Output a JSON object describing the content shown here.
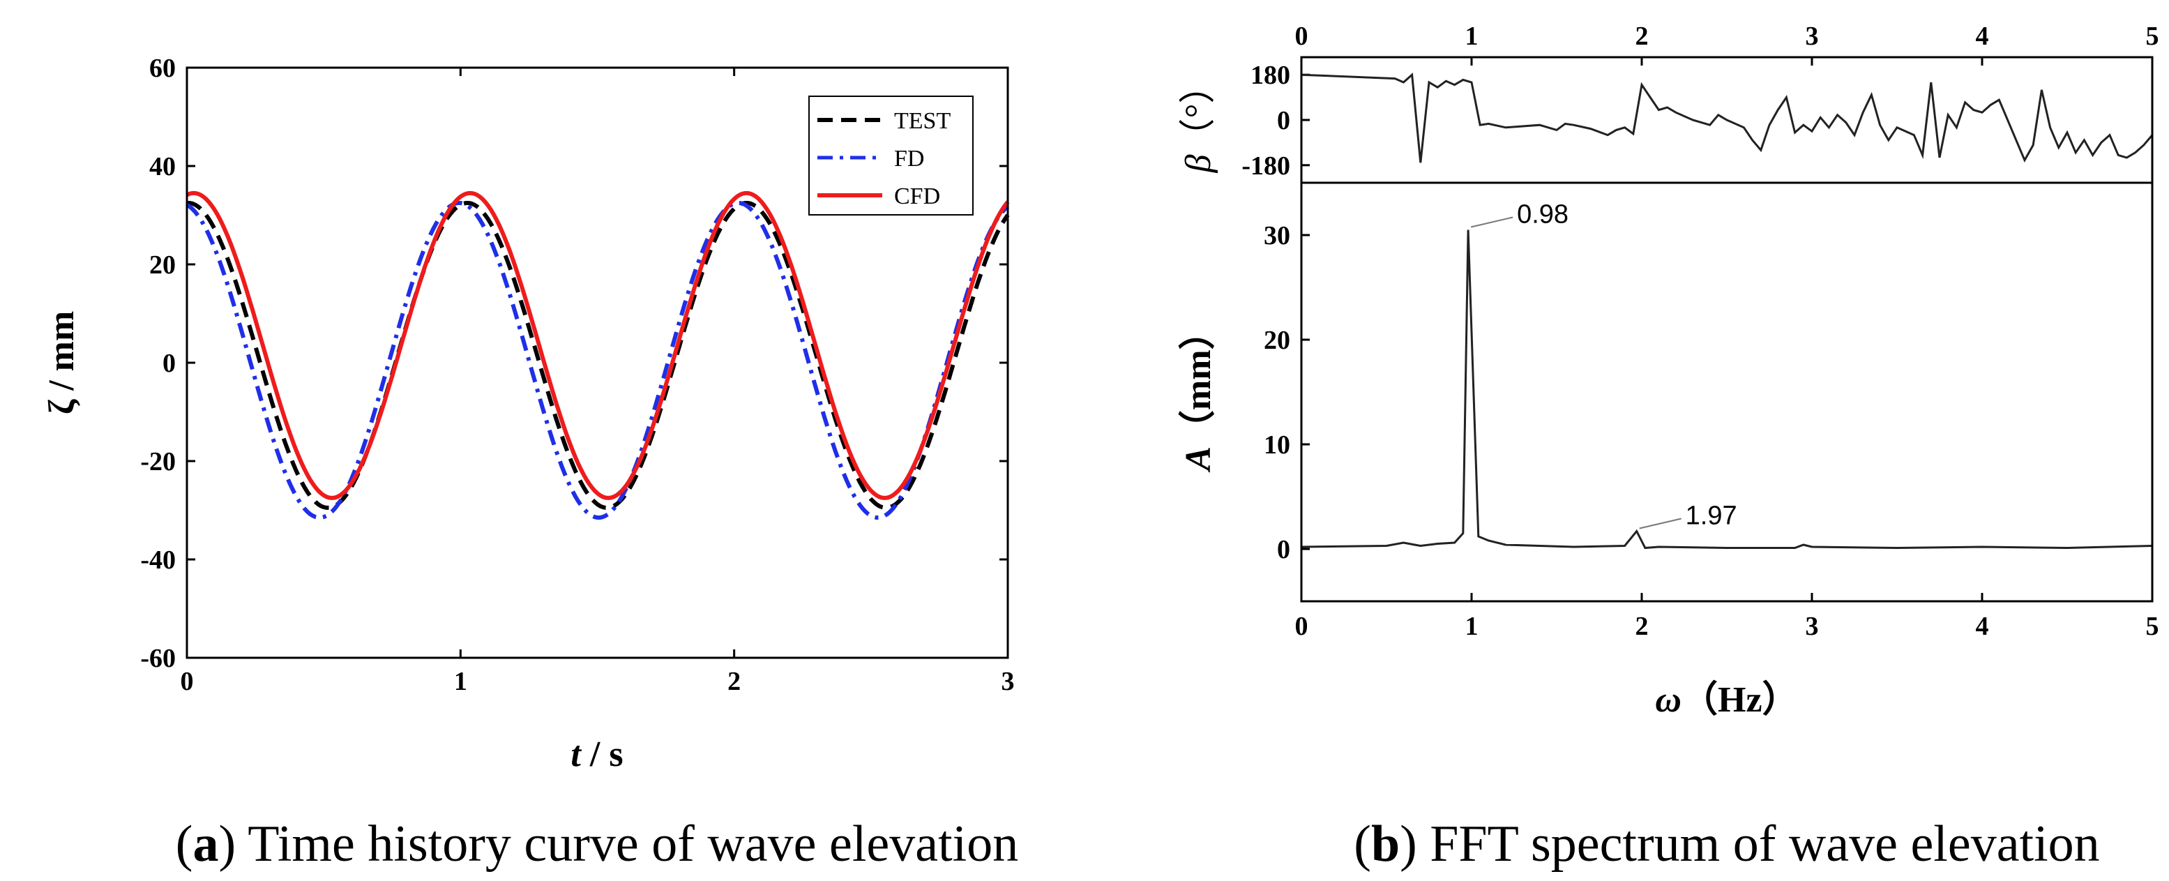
{
  "chart_data": [
    {
      "type": "line",
      "title": "",
      "xlabel_italic": "t",
      "xlabel_rest": " / s",
      "ylabel": "ζ / mm",
      "xlim": [
        0,
        3
      ],
      "ylim": [
        -60,
        60
      ],
      "x_ticks": [
        "0",
        "1",
        "2",
        "3"
      ],
      "y_ticks": [
        "-60",
        "-40",
        "-20",
        "0",
        "20",
        "40",
        "60"
      ],
      "caption_label": "a",
      "caption_text": " Time history curve of wave elevation",
      "legend_position": "top-right",
      "series": [
        {
          "name": "TEST",
          "color": "#000000",
          "style": "dashed",
          "amplitude": 31,
          "offset": 1.5,
          "period": 1.02,
          "t0": 0.005
        },
        {
          "name": "FD",
          "color": "#1f2fe8",
          "style": "dashdot",
          "amplitude": 32,
          "offset": 0.5,
          "period": 1.02,
          "t0": -0.025
        },
        {
          "name": "CFD",
          "color": "#ee1c1c",
          "style": "solid",
          "amplitude": 31,
          "offset": 3.5,
          "period": 1.01,
          "t0": 0.025
        }
      ]
    },
    {
      "type": "line",
      "title": "",
      "xlabel_italic": "ω",
      "xlabel_rest": "（Hz）",
      "xlim": [
        0,
        5
      ],
      "x_ticks": [
        "0",
        "1",
        "2",
        "3",
        "4",
        "5"
      ],
      "caption_label": "b",
      "caption_text": " FFT spectrum of wave elevation",
      "phase": {
        "ylabel_italic": "β",
        "ylabel_rest": "（°）",
        "ylim": [
          -250,
          250
        ],
        "y_ticks": [
          "180",
          "0",
          "-180"
        ],
        "y_tick_values": [
          180,
          0,
          -180
        ],
        "x": [
          0,
          0.55,
          0.6,
          0.65,
          0.7,
          0.75,
          0.8,
          0.85,
          0.9,
          0.95,
          1.0,
          1.05,
          1.1,
          1.2,
          1.3,
          1.4,
          1.5,
          1.55,
          1.6,
          1.7,
          1.8,
          1.85,
          1.9,
          1.95,
          2.0,
          2.05,
          2.1,
          2.15,
          2.2,
          2.3,
          2.4,
          2.45,
          2.5,
          2.6,
          2.65,
          2.7,
          2.75,
          2.8,
          2.85,
          2.9,
          2.95,
          3.0,
          3.05,
          3.1,
          3.15,
          3.2,
          3.25,
          3.3,
          3.35,
          3.4,
          3.45,
          3.5,
          3.6,
          3.65,
          3.7,
          3.75,
          3.8,
          3.85,
          3.9,
          3.95,
          4.0,
          4.05,
          4.1,
          4.2,
          4.25,
          4.3,
          4.35,
          4.4,
          4.45,
          4.5,
          4.55,
          4.6,
          4.65,
          4.7,
          4.75,
          4.8,
          4.85,
          4.9,
          4.95,
          5.0
        ],
        "values": [
          180,
          165,
          150,
          180,
          -170,
          150,
          130,
          155,
          140,
          160,
          150,
          -20,
          -15,
          -30,
          -25,
          -20,
          -40,
          -15,
          -20,
          -35,
          -60,
          -40,
          -30,
          -55,
          140,
          90,
          40,
          50,
          30,
          0,
          -20,
          20,
          0,
          -30,
          -80,
          -120,
          -20,
          40,
          90,
          -50,
          -20,
          -45,
          10,
          -30,
          20,
          -10,
          -60,
          30,
          100,
          -20,
          -80,
          -30,
          -60,
          -140,
          150,
          -150,
          20,
          -30,
          70,
          40,
          30,
          60,
          80,
          -80,
          -160,
          -100,
          120,
          -30,
          -110,
          -50,
          -130,
          -80,
          -140,
          -90,
          -60,
          -140,
          -150,
          -130,
          -100,
          -60
        ]
      },
      "amplitude": {
        "ylabel_italic": "A",
        "ylabel_rest": "（mm）",
        "ylim": [
          -5,
          35
        ],
        "y_ticks": [
          "0",
          "10",
          "20",
          "30"
        ],
        "y_tick_values": [
          0,
          10,
          20,
          30
        ],
        "x": [
          0,
          0.5,
          0.6,
          0.7,
          0.8,
          0.9,
          0.95,
          0.98,
          1.04,
          1.1,
          1.2,
          1.4,
          1.6,
          1.9,
          1.97,
          2.02,
          2.1,
          2.5,
          2.9,
          2.95,
          3.0,
          3.5,
          4.0,
          4.5,
          5.0
        ],
        "values": [
          0.2,
          0.3,
          0.6,
          0.3,
          0.5,
          0.6,
          1.5,
          30.5,
          1.2,
          0.8,
          0.4,
          0.3,
          0.2,
          0.3,
          1.7,
          0.1,
          0.2,
          0.1,
          0.1,
          0.4,
          0.2,
          0.1,
          0.2,
          0.1,
          0.3
        ],
        "annotations": [
          {
            "x": 0.98,
            "y": 30.5,
            "label": "0.98"
          },
          {
            "x": 1.97,
            "y": 1.7,
            "label": "1.97"
          }
        ]
      }
    }
  ]
}
